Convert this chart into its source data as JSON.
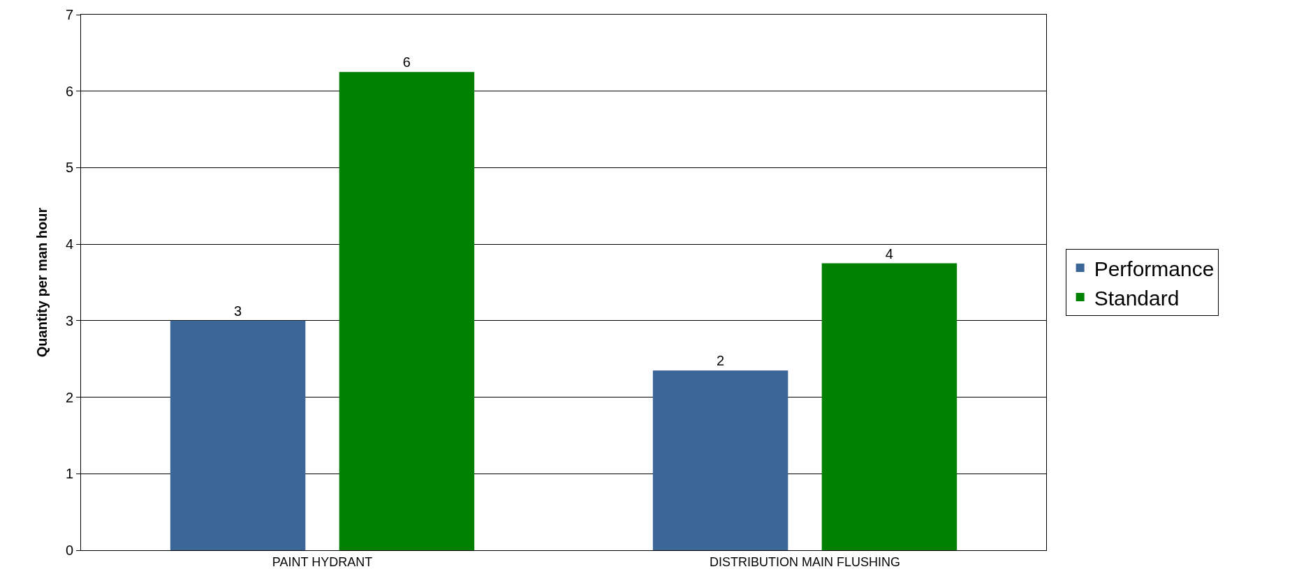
{
  "chart_data": {
    "type": "bar",
    "ylabel": "Quantity per man hour",
    "categories": [
      "PAINT HYDRANT",
      "DISTRIBUTION MAIN FLUSHING"
    ],
    "series": [
      {
        "name": "Performance",
        "color": "#3b6698",
        "values": [
          3.0,
          2.35
        ],
        "value_labels": [
          "3",
          "2"
        ]
      },
      {
        "name": "Standard",
        "color": "#008000",
        "values": [
          6.25,
          3.75
        ],
        "value_labels": [
          "6",
          "4"
        ]
      }
    ],
    "ylim": [
      0,
      7
    ],
    "yticks": [
      0,
      1,
      2,
      3,
      4,
      5,
      6,
      7
    ],
    "grid": "y",
    "legend": "right"
  }
}
